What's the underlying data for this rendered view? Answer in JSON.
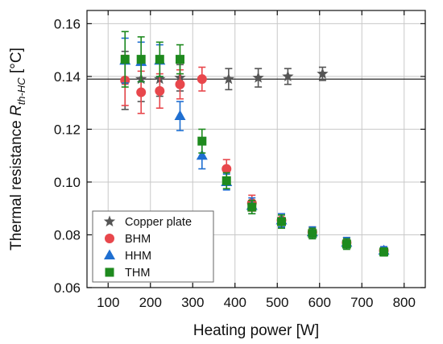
{
  "chart_data": {
    "type": "scatter",
    "xlabel": "Heating power [W]",
    "ylabel": {
      "prefix": "Thermal resistance ",
      "symbol": "R",
      "subscript": "th-HC",
      "unit": " [°C]"
    },
    "xlim": [
      50,
      850
    ],
    "ylim": [
      0.06,
      0.165
    ],
    "xticks": [
      100,
      200,
      300,
      400,
      500,
      600,
      700,
      800
    ],
    "yticks": [
      0.06,
      0.08,
      0.1,
      0.12,
      0.14,
      0.16
    ],
    "ytick_labels": [
      "0.06",
      "0.08",
      "0.10",
      "0.12",
      "0.14",
      "0.16"
    ],
    "grid": true,
    "legend_position": "bottom-left",
    "reference_line": {
      "y": 0.139
    },
    "series": [
      {
        "name": "Copper plate",
        "marker": "star",
        "color": "#555555",
        "points": [
          {
            "x": 140,
            "y": 0.1385,
            "err": 0.011
          },
          {
            "x": 178,
            "y": 0.139,
            "err": 0.0085
          },
          {
            "x": 222,
            "y": 0.139,
            "err": 0.0065
          },
          {
            "x": 270,
            "y": 0.1395,
            "err": 0.005
          },
          {
            "x": 385,
            "y": 0.139,
            "err": 0.004
          },
          {
            "x": 455,
            "y": 0.1395,
            "err": 0.0035
          },
          {
            "x": 525,
            "y": 0.14,
            "err": 0.003
          },
          {
            "x": 607,
            "y": 0.141,
            "err": 0.0025
          }
        ]
      },
      {
        "name": "BHM",
        "marker": "circle",
        "color": "#e8474c",
        "points": [
          {
            "x": 140,
            "y": 0.1385,
            "err": 0.0095
          },
          {
            "x": 178,
            "y": 0.134,
            "err": 0.008
          },
          {
            "x": 222,
            "y": 0.1345,
            "err": 0.0065
          },
          {
            "x": 270,
            "y": 0.137,
            "err": 0.0055
          },
          {
            "x": 322,
            "y": 0.139,
            "err": 0.0045
          },
          {
            "x": 380,
            "y": 0.105,
            "err": 0.0035
          },
          {
            "x": 440,
            "y": 0.092,
            "err": 0.003
          },
          {
            "x": 510,
            "y": 0.0855,
            "err": 0.0025
          },
          {
            "x": 583,
            "y": 0.081,
            "err": 0.002
          },
          {
            "x": 664,
            "y": 0.077,
            "err": 0.002
          },
          {
            "x": 752,
            "y": 0.074,
            "err": 0.0015
          }
        ]
      },
      {
        "name": "HHM",
        "marker": "triangle",
        "color": "#1f6fd1",
        "points": [
          {
            "x": 140,
            "y": 0.146,
            "err": 0.0085
          },
          {
            "x": 178,
            "y": 0.1455,
            "err": 0.0075
          },
          {
            "x": 222,
            "y": 0.146,
            "err": 0.006
          },
          {
            "x": 270,
            "y": 0.125,
            "err": 0.0055
          },
          {
            "x": 322,
            "y": 0.11,
            "err": 0.005
          },
          {
            "x": 380,
            "y": 0.1,
            "err": 0.003
          },
          {
            "x": 440,
            "y": 0.091,
            "err": 0.003
          },
          {
            "x": 510,
            "y": 0.0855,
            "err": 0.0025
          },
          {
            "x": 583,
            "y": 0.081,
            "err": 0.002
          },
          {
            "x": 664,
            "y": 0.077,
            "err": 0.002
          },
          {
            "x": 752,
            "y": 0.074,
            "err": 0.0015
          }
        ]
      },
      {
        "name": "THM",
        "marker": "square",
        "color": "#1e8a1e",
        "points": [
          {
            "x": 140,
            "y": 0.1465,
            "err": 0.0105
          },
          {
            "x": 178,
            "y": 0.1465,
            "err": 0.0085
          },
          {
            "x": 222,
            "y": 0.1465,
            "err": 0.0065
          },
          {
            "x": 270,
            "y": 0.1465,
            "err": 0.0055
          },
          {
            "x": 322,
            "y": 0.1155,
            "err": 0.0045
          },
          {
            "x": 380,
            "y": 0.1005,
            "err": 0.003
          },
          {
            "x": 440,
            "y": 0.0905,
            "err": 0.0025
          },
          {
            "x": 510,
            "y": 0.085,
            "err": 0.0025
          },
          {
            "x": 583,
            "y": 0.0805,
            "err": 0.002
          },
          {
            "x": 664,
            "y": 0.0765,
            "err": 0.002
          },
          {
            "x": 752,
            "y": 0.0735,
            "err": 0.0015
          }
        ]
      }
    ]
  }
}
